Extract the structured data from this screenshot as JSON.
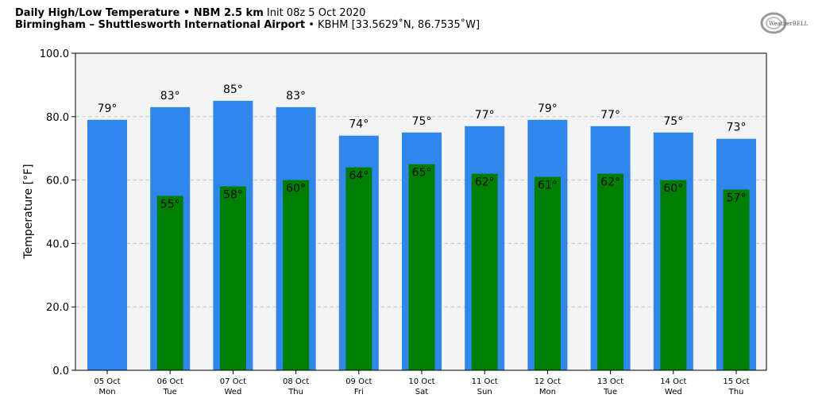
{
  "header": {
    "title_bold": "Daily High/Low Temperature • NBM 2.5 km",
    "title_init": "Init 08z 5 Oct 2020",
    "location_bold": "Birmingham – Shuttlesworth International Airport",
    "location_meta": "• KBHM [33.5629˚N, 86.7535˚W]"
  },
  "logo": {
    "text": "WeatherBELL"
  },
  "colors": {
    "high": "#2e86ee",
    "low": "#008000",
    "plot_bg": "#f4f4f4",
    "grid": "#cccccc"
  },
  "chart_data": {
    "type": "bar",
    "title": "Daily High/Low Temperature • NBM 2.5 km",
    "ylabel": "Temperature [°F]",
    "ylim": [
      0,
      100
    ],
    "yticks": [
      "0.0",
      "20.0",
      "40.0",
      "60.0",
      "80.0",
      "100.0"
    ],
    "grid": true,
    "categories": [
      "05 Oct",
      "06 Oct",
      "07 Oct",
      "08 Oct",
      "09 Oct",
      "10 Oct",
      "11 Oct",
      "12 Oct",
      "13 Oct",
      "14 Oct",
      "15 Oct"
    ],
    "weekdays": [
      "Mon",
      "Tue",
      "Wed",
      "Thu",
      "Fri",
      "Sat",
      "Sun",
      "Mon",
      "Tue",
      "Wed",
      "Thu"
    ],
    "series": [
      {
        "key": "high",
        "values": [
          79,
          83,
          85,
          83,
          74,
          75,
          77,
          79,
          77,
          75,
          73
        ],
        "labels": [
          "79°",
          "83°",
          "85°",
          "83°",
          "74°",
          "75°",
          "77°",
          "79°",
          "77°",
          "75°",
          "73°"
        ]
      },
      {
        "key": "low",
        "values": [
          null,
          55,
          58,
          60,
          64,
          65,
          62,
          61,
          62,
          60,
          57
        ],
        "labels": [
          "",
          "55°",
          "58°",
          "60°",
          "64°",
          "65°",
          "62°",
          "61°",
          "62°",
          "60°",
          "57°"
        ]
      }
    ]
  }
}
